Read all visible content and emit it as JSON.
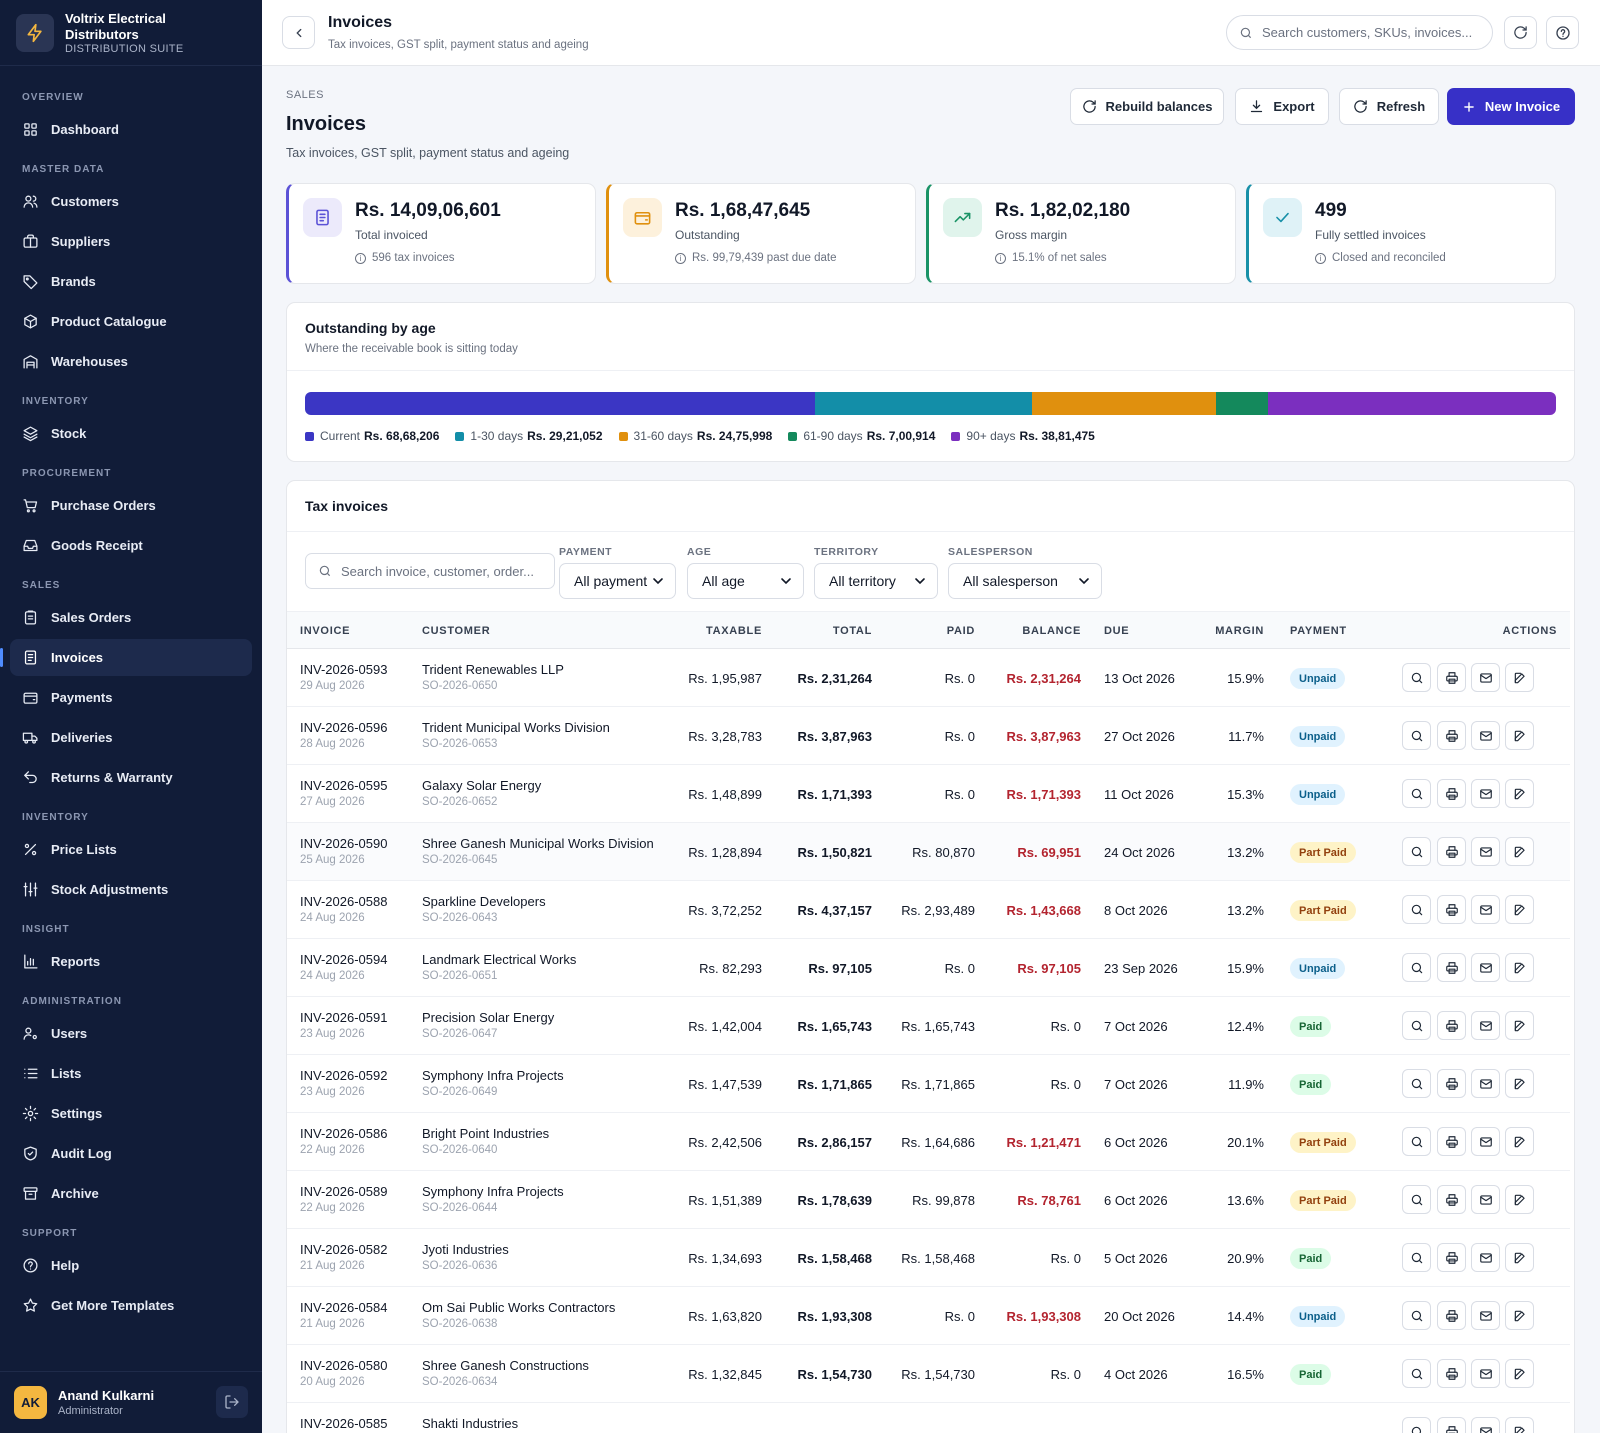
{
  "brand": {
    "name_line1": "Voltrix Electrical",
    "name_line2": "Distributors",
    "suite": "DISTRIBUTION SUITE",
    "logo_icon": "bolt-icon"
  },
  "nav": [
    {
      "type": "section",
      "label": "OVERVIEW"
    },
    {
      "type": "item",
      "label": "Dashboard",
      "icon": "grid-icon"
    },
    {
      "type": "section",
      "label": "MASTER DATA"
    },
    {
      "type": "item",
      "label": "Customers",
      "icon": "users-icon"
    },
    {
      "type": "item",
      "label": "Suppliers",
      "icon": "briefcase-icon"
    },
    {
      "type": "item",
      "label": "Brands",
      "icon": "tag-icon"
    },
    {
      "type": "item",
      "label": "Product Catalogue",
      "icon": "box-icon"
    },
    {
      "type": "item",
      "label": "Warehouses",
      "icon": "warehouse-icon"
    },
    {
      "type": "section",
      "label": "INVENTORY"
    },
    {
      "type": "item",
      "label": "Stock",
      "icon": "layers-icon"
    },
    {
      "type": "section",
      "label": "PROCUREMENT"
    },
    {
      "type": "item",
      "label": "Purchase Orders",
      "icon": "cart-icon"
    },
    {
      "type": "item",
      "label": "Goods Receipt",
      "icon": "inbox-icon"
    },
    {
      "type": "section",
      "label": "SALES"
    },
    {
      "type": "item",
      "label": "Sales Orders",
      "icon": "clipboard-icon"
    },
    {
      "type": "item",
      "label": "Invoices",
      "icon": "invoice-icon",
      "active": true
    },
    {
      "type": "item",
      "label": "Payments",
      "icon": "wallet-icon"
    },
    {
      "type": "item",
      "label": "Deliveries",
      "icon": "truck-icon"
    },
    {
      "type": "item",
      "label": "Returns & Warranty",
      "icon": "undo-icon"
    },
    {
      "type": "section",
      "label": "INVENTORY"
    },
    {
      "type": "item",
      "label": "Price Lists",
      "icon": "percent-icon"
    },
    {
      "type": "item",
      "label": "Stock Adjustments",
      "icon": "sliders-icon"
    },
    {
      "type": "section",
      "label": "INSIGHT"
    },
    {
      "type": "item",
      "label": "Reports",
      "icon": "bar-chart-icon"
    },
    {
      "type": "section",
      "label": "ADMINISTRATION"
    },
    {
      "type": "item",
      "label": "Users",
      "icon": "user-cog-icon"
    },
    {
      "type": "item",
      "label": "Lists",
      "icon": "list-icon"
    },
    {
      "type": "item",
      "label": "Settings",
      "icon": "gear-icon"
    },
    {
      "type": "item",
      "label": "Audit Log",
      "icon": "shield-icon"
    },
    {
      "type": "item",
      "label": "Archive",
      "icon": "archive-icon"
    },
    {
      "type": "section",
      "label": "SUPPORT"
    },
    {
      "type": "item",
      "label": "Help",
      "icon": "help-icon"
    },
    {
      "type": "item",
      "label": "Get More Templates",
      "icon": "star-icon"
    }
  ],
  "user": {
    "initials": "AK",
    "name": "Anand Kulkarni",
    "role": "Administrator"
  },
  "topbar": {
    "title": "Invoices",
    "subtitle": "Tax invoices, GST split, payment status and ageing",
    "search_placeholder": "Search customers, SKUs, invoices..."
  },
  "page": {
    "breadcrumb": "SALES",
    "title": "Invoices",
    "subtitle": "Tax invoices, GST split, payment status and ageing"
  },
  "actions": {
    "rebuild": "Rebuild balances",
    "export": "Export",
    "refresh": "Refresh",
    "new": "New Invoice"
  },
  "kpis": [
    {
      "value": "Rs. 14,09,06,601",
      "label": "Total invoiced",
      "note": "596 tax invoices",
      "color": "#5b52d6",
      "bg": "#eceafb",
      "icon": "invoice-icon"
    },
    {
      "value": "Rs. 1,68,47,645",
      "label": "Outstanding",
      "note": "Rs. 99,79,439 past due date",
      "color": "#e0900e",
      "bg": "#fdf1dc",
      "icon": "wallet-icon"
    },
    {
      "value": "Rs. 1,82,02,180",
      "label": "Gross margin",
      "note": "15.1% of net sales",
      "color": "#1a9366",
      "bg": "#e0f4ec",
      "icon": "trend-up-icon"
    },
    {
      "value": "499",
      "label": "Fully settled invoices",
      "note": "Closed and reconciled",
      "color": "#1890a8",
      "bg": "#dff2f7",
      "icon": "check-icon"
    }
  ],
  "ageing": {
    "title": "Outstanding by age",
    "subtitle": "Where the receivable book is sitting today",
    "buckets": [
      {
        "label": "Current",
        "amount": "Rs. 68,68,206",
        "value": 6868206,
        "color": "#3b36c4"
      },
      {
        "label": "1-30 days",
        "amount": "Rs. 29,21,052",
        "value": 2921052,
        "color": "#138ea8"
      },
      {
        "label": "31-60 days",
        "amount": "Rs. 24,75,998",
        "value": 2475998,
        "color": "#e0900e"
      },
      {
        "label": "61-90 days",
        "amount": "Rs. 7,00,914",
        "value": 700914,
        "color": "#14895c"
      },
      {
        "label": "90+ days",
        "amount": "Rs. 38,81,475",
        "value": 3881475,
        "color": "#7b2fbf"
      }
    ]
  },
  "table": {
    "title": "Tax invoices",
    "search_placeholder": "Search invoice, customer, order...",
    "filters": [
      {
        "label": "PAYMENT",
        "value": "All payment"
      },
      {
        "label": "AGE",
        "value": "All age"
      },
      {
        "label": "TERRITORY",
        "value": "All territory"
      },
      {
        "label": "SALESPERSON",
        "value": "All salesperson"
      }
    ],
    "columns": [
      "INVOICE",
      "CUSTOMER",
      "TAXABLE",
      "TOTAL",
      "PAID",
      "BALANCE",
      "DUE",
      "MARGIN",
      "PAYMENT",
      "ACTIONS"
    ],
    "rows": [
      {
        "inv": "INV-2026-0593",
        "date": "29 Aug 2026",
        "customer": "Trident Renewables LLP",
        "so": "SO-2026-0650",
        "taxable": "Rs. 1,95,987",
        "total": "Rs. 2,31,264",
        "paid": "Rs. 0",
        "balance": "Rs. 2,31,264",
        "due": "13 Oct 2026",
        "margin": "15.9%",
        "status": "Unpaid"
      },
      {
        "inv": "INV-2026-0596",
        "date": "28 Aug 2026",
        "customer": "Trident Municipal Works Division",
        "so": "SO-2026-0653",
        "taxable": "Rs. 3,28,783",
        "total": "Rs. 3,87,963",
        "paid": "Rs. 0",
        "balance": "Rs. 3,87,963",
        "due": "27 Oct 2026",
        "margin": "11.7%",
        "status": "Unpaid"
      },
      {
        "inv": "INV-2026-0595",
        "date": "27 Aug 2026",
        "customer": "Galaxy Solar Energy",
        "so": "SO-2026-0652",
        "taxable": "Rs. 1,48,899",
        "total": "Rs. 1,71,393",
        "paid": "Rs. 0",
        "balance": "Rs. 1,71,393",
        "due": "11 Oct 2026",
        "margin": "15.3%",
        "status": "Unpaid"
      },
      {
        "inv": "INV-2026-0590",
        "date": "25 Aug 2026",
        "customer": "Shree Ganesh Municipal Works Division",
        "so": "SO-2026-0645",
        "taxable": "Rs. 1,28,894",
        "total": "Rs. 1,50,821",
        "paid": "Rs. 80,870",
        "balance": "Rs. 69,951",
        "due": "24 Oct 2026",
        "margin": "13.2%",
        "status": "Part Paid"
      },
      {
        "inv": "INV-2026-0588",
        "date": "24 Aug 2026",
        "customer": "Sparkline Developers",
        "so": "SO-2026-0643",
        "taxable": "Rs. 3,72,252",
        "total": "Rs. 4,37,157",
        "paid": "Rs. 2,93,489",
        "balance": "Rs. 1,43,668",
        "due": "8 Oct 2026",
        "margin": "13.2%",
        "status": "Part Paid"
      },
      {
        "inv": "INV-2026-0594",
        "date": "24 Aug 2026",
        "customer": "Landmark Electrical Works",
        "so": "SO-2026-0651",
        "taxable": "Rs. 82,293",
        "total": "Rs. 97,105",
        "paid": "Rs. 0",
        "balance": "Rs. 97,105",
        "due": "23 Sep 2026",
        "margin": "15.9%",
        "status": "Unpaid"
      },
      {
        "inv": "INV-2026-0591",
        "date": "23 Aug 2026",
        "customer": "Precision Solar Energy",
        "so": "SO-2026-0647",
        "taxable": "Rs. 1,42,004",
        "total": "Rs. 1,65,743",
        "paid": "Rs. 1,65,743",
        "balance": "Rs. 0",
        "due": "7 Oct 2026",
        "margin": "12.4%",
        "status": "Paid"
      },
      {
        "inv": "INV-2026-0592",
        "date": "23 Aug 2026",
        "customer": "Symphony Infra Projects",
        "so": "SO-2026-0649",
        "taxable": "Rs. 1,47,539",
        "total": "Rs. 1,71,865",
        "paid": "Rs. 1,71,865",
        "balance": "Rs. 0",
        "due": "7 Oct 2026",
        "margin": "11.9%",
        "status": "Paid"
      },
      {
        "inv": "INV-2026-0586",
        "date": "22 Aug 2026",
        "customer": "Bright Point Industries",
        "so": "SO-2026-0640",
        "taxable": "Rs. 2,42,506",
        "total": "Rs. 2,86,157",
        "paid": "Rs. 1,64,686",
        "balance": "Rs. 1,21,471",
        "due": "6 Oct 2026",
        "margin": "20.1%",
        "status": "Part Paid"
      },
      {
        "inv": "INV-2026-0589",
        "date": "22 Aug 2026",
        "customer": "Symphony Infra Projects",
        "so": "SO-2026-0644",
        "taxable": "Rs. 1,51,389",
        "total": "Rs. 1,78,639",
        "paid": "Rs. 99,878",
        "balance": "Rs. 78,761",
        "due": "6 Oct 2026",
        "margin": "13.6%",
        "status": "Part Paid"
      },
      {
        "inv": "INV-2026-0582",
        "date": "21 Aug 2026",
        "customer": "Jyoti Industries",
        "so": "SO-2026-0636",
        "taxable": "Rs. 1,34,693",
        "total": "Rs. 1,58,468",
        "paid": "Rs. 1,58,468",
        "balance": "Rs. 0",
        "due": "5 Oct 2026",
        "margin": "20.9%",
        "status": "Paid"
      },
      {
        "inv": "INV-2026-0584",
        "date": "21 Aug 2026",
        "customer": "Om Sai Public Works Contractors",
        "so": "SO-2026-0638",
        "taxable": "Rs. 1,63,820",
        "total": "Rs. 1,93,308",
        "paid": "Rs. 0",
        "balance": "Rs. 1,93,308",
        "due": "20 Oct 2026",
        "margin": "14.4%",
        "status": "Unpaid"
      },
      {
        "inv": "INV-2026-0580",
        "date": "20 Aug 2026",
        "customer": "Shree Ganesh Constructions",
        "so": "SO-2026-0634",
        "taxable": "Rs. 1,32,845",
        "total": "Rs. 1,54,730",
        "paid": "Rs. 1,54,730",
        "balance": "Rs. 0",
        "due": "4 Oct 2026",
        "margin": "16.5%",
        "status": "Paid"
      },
      {
        "inv": "INV-2026-0585",
        "date": "",
        "customer": "Shakti Industries",
        "so": "",
        "taxable": "",
        "total": "",
        "paid": "",
        "balance": "",
        "due": "",
        "margin": "",
        "status": ""
      }
    ],
    "row_actions": [
      {
        "name": "view",
        "icon": "search-icon"
      },
      {
        "name": "print",
        "icon": "printer-icon"
      },
      {
        "name": "email",
        "icon": "mail-icon"
      },
      {
        "name": "edit",
        "icon": "edit-icon"
      }
    ]
  }
}
